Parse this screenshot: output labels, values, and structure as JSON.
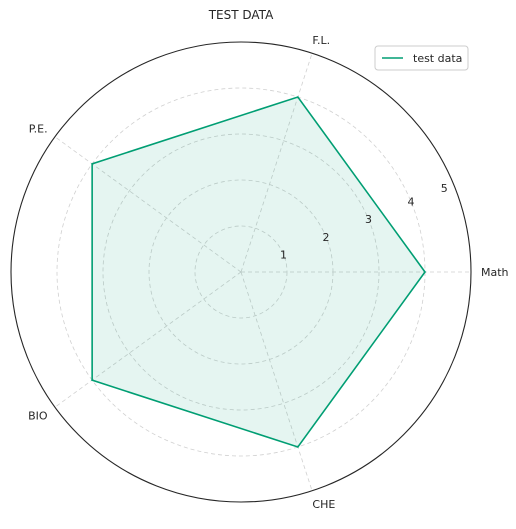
{
  "chart_data": {
    "type": "radar",
    "title": "TEST DATA",
    "categories": [
      "Math",
      "F.L.",
      "P.E.",
      "BIO",
      "CHE"
    ],
    "series": [
      {
        "name": "test data",
        "values": [
          4,
          4,
          4,
          4,
          4
        ]
      }
    ],
    "rlim": [
      0,
      5
    ],
    "radial_ticks": [
      "1",
      "2",
      "3",
      "4",
      "5"
    ],
    "grid": true,
    "legend_position": "top-right",
    "colors": {
      "series_line": "#009e73",
      "series_fill": "#009e73",
      "grid": "#d0d0d0",
      "frame": "#262626"
    }
  }
}
